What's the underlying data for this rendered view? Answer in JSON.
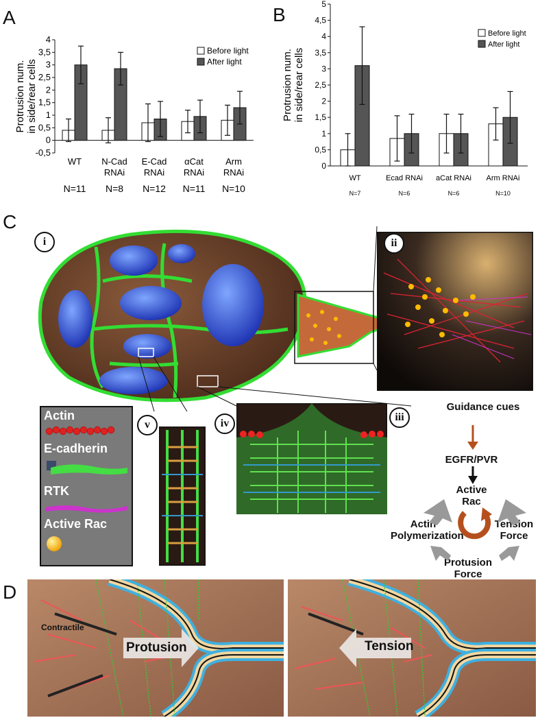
{
  "panels": {
    "a": "A",
    "b": "B",
    "c": "C",
    "d": "D"
  },
  "chart_data": [
    {
      "type": "bar",
      "ylabel": "Protrusion num. in side/rear cells",
      "ylim": [
        -0.5,
        4
      ],
      "yticks": [
        "-0,5",
        "0",
        "0,5",
        "1",
        "1,5",
        "2",
        "2,5",
        "3",
        "3,5",
        "4"
      ],
      "categories": [
        "WT",
        "N-Cad RNAi",
        "E-Cad RNAi",
        "αCat RNAi",
        "Arm RNAi"
      ],
      "n_labels": [
        "N=11",
        "N=8",
        "N=12",
        "N=11",
        "N=10"
      ],
      "series": [
        {
          "name": "Before light",
          "color": "#ffffff",
          "values": [
            0.4,
            0.4,
            0.7,
            0.75,
            0.8
          ],
          "err": [
            0.45,
            0.5,
            0.75,
            0.45,
            0.6
          ]
        },
        {
          "name": "After light",
          "color": "#555555",
          "values": [
            3.0,
            2.85,
            0.85,
            0.95,
            1.3
          ],
          "err": [
            0.75,
            0.65,
            0.7,
            0.65,
            0.65
          ]
        }
      ]
    },
    {
      "type": "bar",
      "ylabel": "Protrusion num. in side/rear cells",
      "ylim": [
        0,
        5
      ],
      "yticks": [
        "0",
        "0,5",
        "1",
        "1,5",
        "2",
        "2,5",
        "3",
        "3,5",
        "4",
        "4,5",
        "5"
      ],
      "categories": [
        "WT",
        "Ecad RNAi",
        "aCat RNAi",
        "Arm RNAi"
      ],
      "n_labels": [
        "N=7",
        "N=6",
        "N=6",
        "N=10"
      ],
      "series": [
        {
          "name": "Before light",
          "color": "#ffffff",
          "values": [
            0.5,
            0.85,
            1.0,
            1.3
          ],
          "err": [
            0.5,
            0.7,
            0.6,
            0.5
          ]
        },
        {
          "name": "After light",
          "color": "#555555",
          "values": [
            3.1,
            1.0,
            1.0,
            1.5
          ],
          "err": [
            1.2,
            0.6,
            0.6,
            0.8
          ]
        }
      ]
    }
  ],
  "diagram_c": {
    "insets": [
      "i",
      "ii",
      "iii",
      "iv",
      "v"
    ],
    "legend": [
      "Actin",
      "E-cadherin",
      "RTK",
      "Active Rac"
    ],
    "flow": {
      "guidance": "Guidance cues",
      "receptor": "EGFR/PVR",
      "rac": "Active Rac",
      "actin": "Actin Polymerization",
      "tension": "Tension Force",
      "protrusion": "Protusion Force"
    },
    "colors": {
      "actin": "#cc2222",
      "ecad": "#33cc33",
      "rtk": "#cc33cc",
      "rac": "#ffbb00",
      "arrow_red": "#b5501e",
      "arrow_grey": "#999999"
    }
  },
  "panel_d": {
    "left_label": "Contractile",
    "left_arrow": "Protusion",
    "right_arrow": "Tension"
  }
}
